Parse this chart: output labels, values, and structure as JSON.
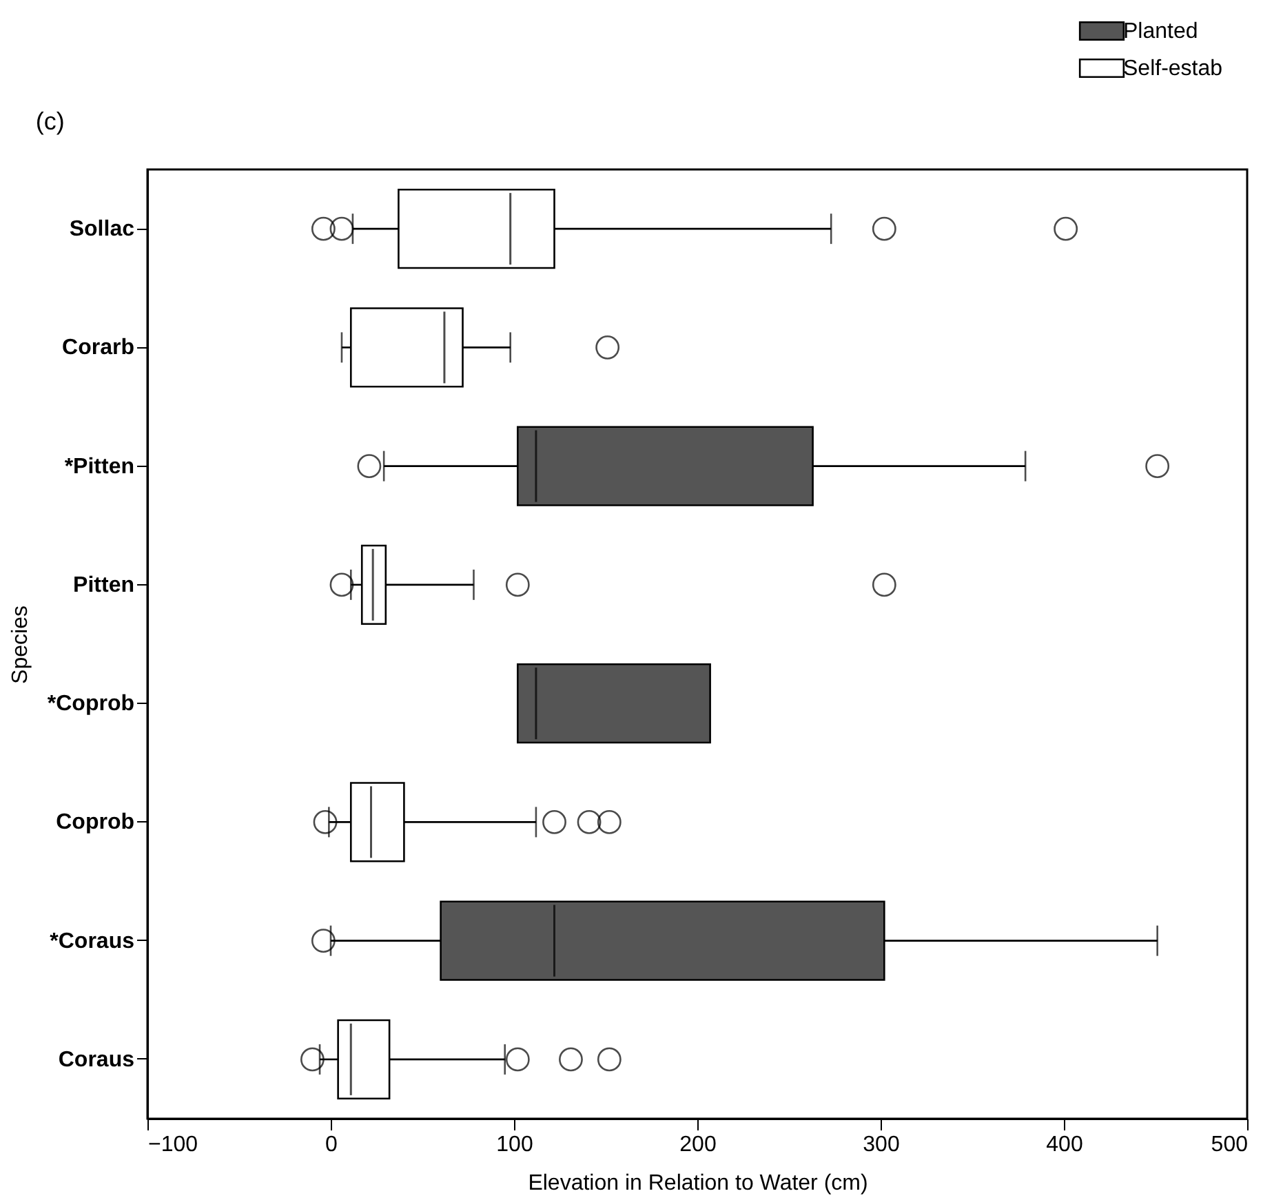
{
  "chart_data": {
    "type": "box",
    "title": "(c)",
    "xlabel": "Elevation in Relation to Water (cm)",
    "ylabel": "Species",
    "orientation": "horizontal",
    "categories": [
      "Sollac",
      "Corarb",
      "*Pitten",
      "Pitten",
      "*Coprob",
      "Coprob",
      "*Coraus",
      "Coraus"
    ],
    "xlim": [
      -100,
      500
    ],
    "xticks": [
      -100,
      0,
      100,
      200,
      300,
      400,
      500
    ],
    "grid": false,
    "legend": "top right",
    "series": [
      {
        "name": "Planted",
        "color": "#555555",
        "boxes": [
          null,
          null,
          {
            "low": 29,
            "q1": 102,
            "median": 112,
            "q3": 263,
            "high": 379,
            "outliers": [
              21,
              451
            ]
          },
          null,
          {
            "low": 102,
            "q1": 102,
            "median": 112,
            "q3": 207,
            "high": 207
          },
          null,
          {
            "low": 0,
            "q1": 60,
            "median": 122,
            "q3": 302,
            "high": 451,
            "outliers": [
              -4
            ]
          },
          null
        ]
      },
      {
        "name": "Self-estab",
        "color": "#ffffff",
        "boxes": [
          {
            "low": 12,
            "q1": 37,
            "median": 98,
            "q3": 122,
            "high": 273,
            "outliers": [
              -4,
              6,
              302,
              401
            ]
          },
          {
            "low": 6,
            "q1": 11,
            "median": 62,
            "q3": 72,
            "high": 98,
            "outliers": [
              151
            ]
          },
          null,
          {
            "low": 11,
            "q1": 17,
            "median": 23,
            "q3": 30,
            "high": 78,
            "outliers": [
              6,
              102,
              302
            ]
          },
          null,
          {
            "low": -1,
            "q1": 11,
            "median": 22,
            "q3": 40,
            "high": 112,
            "outliers": [
              -3,
              122,
              141,
              152
            ]
          },
          null,
          {
            "low": -6,
            "q1": 4,
            "median": 11,
            "q3": 32,
            "high": 95,
            "outliers": [
              -10,
              102,
              131,
              152
            ]
          }
        ]
      }
    ]
  }
}
